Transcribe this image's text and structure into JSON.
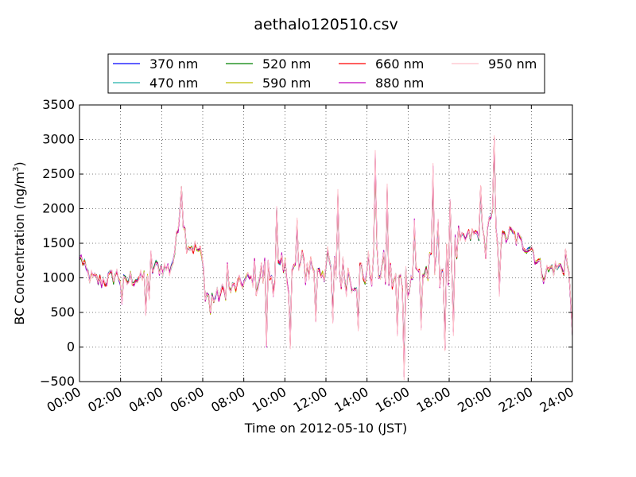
{
  "chart_data": {
    "type": "line",
    "title": "aethalo120510.csv",
    "xlabel": "Time on 2012-05-10 (JST)",
    "ylabel_main": "BC Concentration (ng/m",
    "ylabel_sup": "3",
    "ylabel_tail": ")",
    "xlim": [
      0,
      24
    ],
    "ylim": [
      -500,
      3500
    ],
    "x_ticks": [
      0,
      2,
      4,
      6,
      8,
      10,
      12,
      14,
      16,
      18,
      20,
      22,
      24
    ],
    "x_tick_labels": [
      "00:00",
      "02:00",
      "04:00",
      "06:00",
      "08:00",
      "10:00",
      "12:00",
      "14:00",
      "16:00",
      "18:00",
      "20:00",
      "22:00",
      "24:00"
    ],
    "y_ticks": [
      -500,
      0,
      500,
      1000,
      1500,
      2000,
      2500,
      3000,
      3500
    ],
    "y_tick_labels": [
      "−500",
      "0",
      "500",
      "1000",
      "1500",
      "2000",
      "2500",
      "3000",
      "3500"
    ],
    "grid": true,
    "legend_position": "top, above plot",
    "base_profile": [
      [
        0,
        1250
      ],
      [
        0.3,
        1100
      ],
      [
        0.6,
        980
      ],
      [
        1.0,
        950
      ],
      [
        1.5,
        1000
      ],
      [
        1.8,
        1050
      ],
      [
        2.2,
        900
      ],
      [
        2.5,
        1000
      ],
      [
        3.0,
        980
      ],
      [
        3.3,
        1050
      ],
      [
        3.6,
        1150
      ],
      [
        4.0,
        1150
      ],
      [
        4.4,
        1120
      ],
      [
        4.6,
        1300
      ],
      [
        4.8,
        1700
      ],
      [
        4.9,
        2150
      ],
      [
        5.0,
        1950
      ],
      [
        5.2,
        1500
      ],
      [
        5.5,
        1450
      ],
      [
        5.8,
        1400
      ],
      [
        6.0,
        1250
      ],
      [
        6.1,
        800
      ],
      [
        6.5,
        700
      ],
      [
        7.0,
        800
      ],
      [
        7.5,
        850
      ],
      [
        8.0,
        950
      ],
      [
        8.5,
        1000
      ],
      [
        9.0,
        1050
      ],
      [
        9.5,
        1050
      ],
      [
        10.0,
        1050
      ],
      [
        10.5,
        1100
      ],
      [
        11.0,
        1150
      ],
      [
        11.5,
        1200
      ],
      [
        12.0,
        1150
      ],
      [
        12.5,
        1100
      ],
      [
        13.0,
        1050
      ],
      [
        13.5,
        1050
      ],
      [
        14.0,
        1100
      ],
      [
        14.3,
        1150
      ],
      [
        14.5,
        1200
      ],
      [
        15.0,
        1050
      ],
      [
        15.5,
        900
      ],
      [
        16.0,
        1000
      ],
      [
        16.5,
        1050
      ],
      [
        17.0,
        1100
      ],
      [
        17.5,
        1150
      ],
      [
        18.0,
        1200
      ],
      [
        18.2,
        1300
      ],
      [
        18.5,
        1500
      ],
      [
        19.0,
        1600
      ],
      [
        19.5,
        1650
      ],
      [
        20.0,
        1800
      ],
      [
        20.2,
        1950
      ],
      [
        20.3,
        1550
      ],
      [
        20.6,
        1550
      ],
      [
        21.0,
        1650
      ],
      [
        21.5,
        1500
      ],
      [
        22.0,
        1450
      ],
      [
        22.3,
        1250
      ],
      [
        22.6,
        1050
      ],
      [
        23.0,
        1150
      ],
      [
        23.5,
        1150
      ],
      [
        23.8,
        1150
      ],
      [
        24.0,
        300
      ]
    ],
    "noise_amplitude": 120,
    "spikes": [
      [
        0.05,
        1300
      ],
      [
        2.1,
        650
      ],
      [
        3.2,
        500
      ],
      [
        3.4,
        700
      ],
      [
        3.5,
        1350
      ],
      [
        5.0,
        2300
      ],
      [
        6.4,
        500
      ],
      [
        7.2,
        1200
      ],
      [
        9.1,
        50
      ],
      [
        9.6,
        2000
      ],
      [
        10.3,
        50
      ],
      [
        10.6,
        1800
      ],
      [
        11.5,
        400
      ],
      [
        12.3,
        400
      ],
      [
        12.6,
        2200
      ],
      [
        13.6,
        300
      ],
      [
        14.4,
        2750
      ],
      [
        15.0,
        2300
      ],
      [
        15.5,
        200
      ],
      [
        15.8,
        -400
      ],
      [
        16.3,
        1800
      ],
      [
        16.6,
        300
      ],
      [
        17.2,
        2550
      ],
      [
        17.5,
        1800
      ],
      [
        17.8,
        0
      ],
      [
        18.0,
        2100
      ],
      [
        18.2,
        250
      ],
      [
        19.5,
        2300
      ],
      [
        19.8,
        1300
      ],
      [
        20.2,
        3000
      ],
      [
        20.4,
        800
      ],
      [
        23.7,
        1400
      ]
    ],
    "series": [
      {
        "name": "370 nm",
        "color": "#0000ff",
        "scale": 0.97
      },
      {
        "name": "470 nm",
        "color": "#20b2aa",
        "scale": 0.985
      },
      {
        "name": "520 nm",
        "color": "#008000",
        "scale": 0.98
      },
      {
        "name": "590 nm",
        "color": "#bfbf00",
        "scale": 1.0
      },
      {
        "name": "660 nm",
        "color": "#ff0000",
        "scale": 1.01
      },
      {
        "name": "880 nm",
        "color": "#bf00bf",
        "scale": 1.04
      },
      {
        "name": "950 nm",
        "color": "#ffc0cb",
        "scale": 1.06
      }
    ]
  }
}
